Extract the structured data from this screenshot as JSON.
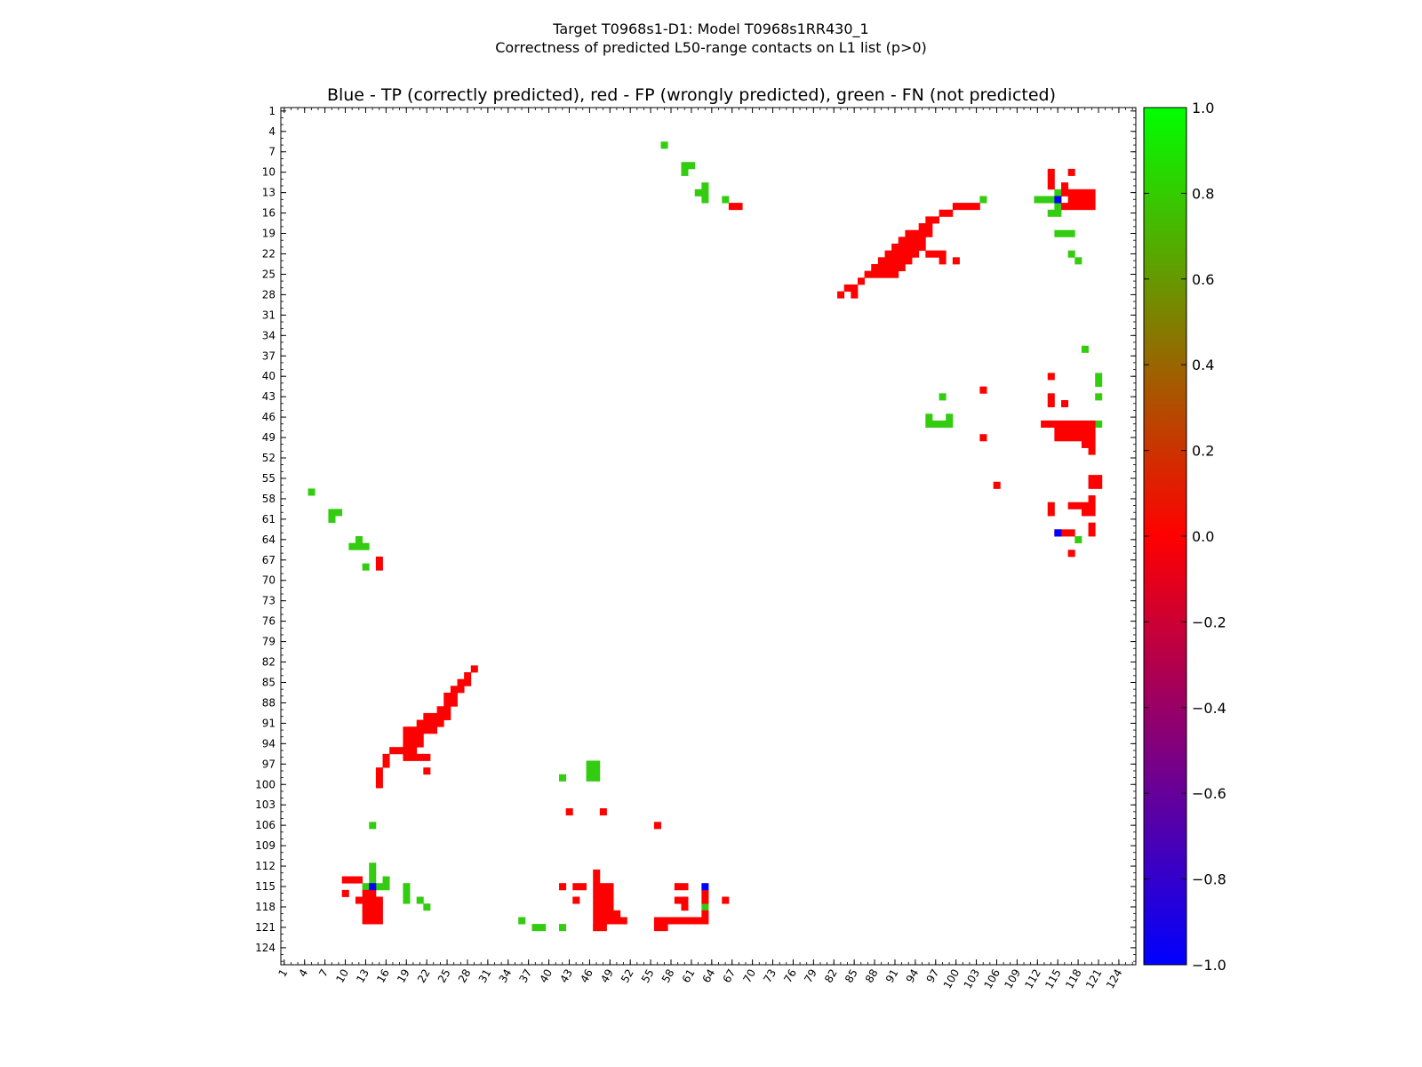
{
  "suptitle_line1": "Target T0968s1-D1: Model T0968s1RR430_1",
  "suptitle_line2": "Correctness of predicted L50-range contacts on L1 list (p>0)",
  "chart_data": {
    "type": "heatmap",
    "title": "Blue - TP (correctly predicted), red - FP (wrongly predicted), green - FN (not predicted)",
    "xlabel": "",
    "ylabel": "",
    "axis_range": [
      1,
      126
    ],
    "tick_labels": [
      "1",
      "4",
      "7",
      "10",
      "13",
      "16",
      "19",
      "22",
      "25",
      "28",
      "31",
      "34",
      "37",
      "40",
      "43",
      "46",
      "49",
      "52",
      "55",
      "58",
      "61",
      "64",
      "67",
      "70",
      "73",
      "76",
      "79",
      "82",
      "85",
      "88",
      "91",
      "94",
      "97",
      "100",
      "103",
      "106",
      "109",
      "112",
      "115",
      "118",
      "121",
      "124"
    ],
    "colorbar": {
      "min": -1.0,
      "max": 1.0,
      "ticks": [
        "−1.0",
        "−0.8",
        "−0.6",
        "−0.4",
        "−0.2",
        "0.0",
        "0.2",
        "0.4",
        "0.6",
        "0.8",
        "1.0"
      ],
      "colors": {
        "low": "#0000ff",
        "mid": "#ff0000",
        "high": "#00ff00"
      }
    },
    "legend": {
      "tp_color": "#0000ff",
      "fp_color": "#ff0000",
      "fn_color": "#33cc11"
    },
    "tp": [
      [
        14,
        115
      ],
      [
        115,
        14
      ],
      [
        63,
        115
      ],
      [
        115,
        63
      ]
    ],
    "fp": [
      [
        10,
        114
      ],
      [
        11,
        114
      ],
      [
        12,
        114
      ],
      [
        10,
        116
      ],
      [
        12,
        117
      ],
      [
        13,
        117
      ],
      [
        13,
        116
      ],
      [
        14,
        116
      ],
      [
        13,
        118
      ],
      [
        14,
        118
      ],
      [
        15,
        118
      ],
      [
        13,
        119
      ],
      [
        14,
        119
      ],
      [
        15,
        119
      ],
      [
        13,
        120
      ],
      [
        14,
        120
      ],
      [
        15,
        120
      ],
      [
        14,
        117
      ],
      [
        15,
        117
      ],
      [
        15,
        68
      ],
      [
        15,
        67
      ],
      [
        15,
        98
      ],
      [
        15,
        99
      ],
      [
        15,
        100
      ],
      [
        16,
        96
      ],
      [
        16,
        97
      ],
      [
        17,
        95
      ],
      [
        18,
        95
      ],
      [
        19,
        92
      ],
      [
        19,
        93
      ],
      [
        19,
        94
      ],
      [
        19,
        95
      ],
      [
        19,
        96
      ],
      [
        20,
        92
      ],
      [
        20,
        93
      ],
      [
        20,
        94
      ],
      [
        20,
        95
      ],
      [
        21,
        91
      ],
      [
        21,
        92
      ],
      [
        21,
        93
      ],
      [
        21,
        94
      ],
      [
        22,
        90
      ],
      [
        22,
        91
      ],
      [
        22,
        92
      ],
      [
        23,
        90
      ],
      [
        23,
        91
      ],
      [
        23,
        92
      ],
      [
        24,
        89
      ],
      [
        24,
        90
      ],
      [
        24,
        91
      ],
      [
        25,
        87
      ],
      [
        25,
        88
      ],
      [
        25,
        89
      ],
      [
        25,
        90
      ],
      [
        26,
        86
      ],
      [
        26,
        87
      ],
      [
        26,
        88
      ],
      [
        27,
        85
      ],
      [
        27,
        86
      ],
      [
        28,
        84
      ],
      [
        28,
        85
      ],
      [
        29,
        83
      ],
      [
        20,
        96
      ],
      [
        21,
        96
      ],
      [
        22,
        96
      ],
      [
        22,
        98
      ],
      [
        42,
        115
      ],
      [
        44,
        115
      ],
      [
        45,
        115
      ],
      [
        44,
        117
      ],
      [
        43,
        104
      ],
      [
        48,
        104
      ],
      [
        56,
        106
      ],
      [
        56,
        120
      ],
      [
        57,
        120
      ],
      [
        56,
        121
      ],
      [
        57,
        121
      ],
      [
        47,
        113
      ],
      [
        47,
        114
      ],
      [
        47,
        115
      ],
      [
        47,
        116
      ],
      [
        47,
        117
      ],
      [
        47,
        118
      ],
      [
        47,
        119
      ],
      [
        47,
        120
      ],
      [
        47,
        121
      ],
      [
        48,
        115
      ],
      [
        48,
        116
      ],
      [
        48,
        117
      ],
      [
        48,
        118
      ],
      [
        48,
        119
      ],
      [
        48,
        120
      ],
      [
        48,
        121
      ],
      [
        49,
        115
      ],
      [
        49,
        116
      ],
      [
        49,
        117
      ],
      [
        49,
        118
      ],
      [
        49,
        119
      ],
      [
        49,
        120
      ],
      [
        50,
        119
      ],
      [
        50,
        120
      ],
      [
        51,
        120
      ],
      [
        59,
        115
      ],
      [
        60,
        115
      ],
      [
        59,
        117
      ],
      [
        60,
        117
      ],
      [
        60,
        118
      ],
      [
        58,
        120
      ],
      [
        59,
        120
      ],
      [
        60,
        120
      ],
      [
        61,
        120
      ],
      [
        62,
        120
      ],
      [
        63,
        120
      ],
      [
        63,
        119
      ],
      [
        63,
        116
      ],
      [
        63,
        117
      ],
      [
        66,
        117
      ],
      [
        114,
        10
      ],
      [
        114,
        11
      ],
      [
        114,
        12
      ],
      [
        117,
        10
      ],
      [
        116,
        12
      ],
      [
        116,
        13
      ],
      [
        117,
        13
      ],
      [
        118,
        13
      ],
      [
        119,
        13
      ],
      [
        120,
        13
      ],
      [
        117,
        14
      ],
      [
        118,
        14
      ],
      [
        119,
        14
      ],
      [
        120,
        14
      ],
      [
        116,
        15
      ],
      [
        117,
        15
      ],
      [
        118,
        15
      ],
      [
        119,
        15
      ],
      [
        120,
        15
      ],
      [
        67,
        15
      ],
      [
        68,
        15
      ],
      [
        98,
        16
      ],
      [
        99,
        16
      ],
      [
        100,
        15
      ],
      [
        101,
        15
      ],
      [
        102,
        15
      ],
      [
        103,
        15
      ],
      [
        83,
        28
      ],
      [
        84,
        27
      ],
      [
        85,
        27
      ],
      [
        86,
        26
      ],
      [
        85,
        28
      ],
      [
        87,
        25
      ],
      [
        88,
        25
      ],
      [
        89,
        25
      ],
      [
        90,
        25
      ],
      [
        91,
        25
      ],
      [
        88,
        24
      ],
      [
        89,
        24
      ],
      [
        90,
        24
      ],
      [
        91,
        24
      ],
      [
        92,
        24
      ],
      [
        89,
        23
      ],
      [
        90,
        23
      ],
      [
        91,
        23
      ],
      [
        92,
        23
      ],
      [
        93,
        23
      ],
      [
        90,
        22
      ],
      [
        91,
        22
      ],
      [
        92,
        22
      ],
      [
        93,
        22
      ],
      [
        94,
        22
      ],
      [
        91,
        21
      ],
      [
        92,
        21
      ],
      [
        93,
        21
      ],
      [
        94,
        21
      ],
      [
        95,
        21
      ],
      [
        92,
        20
      ],
      [
        93,
        20
      ],
      [
        94,
        20
      ],
      [
        95,
        20
      ],
      [
        93,
        19
      ],
      [
        94,
        19
      ],
      [
        95,
        19
      ],
      [
        96,
        19
      ],
      [
        95,
        18
      ],
      [
        96,
        18
      ],
      [
        96,
        17
      ],
      [
        97,
        17
      ],
      [
        96,
        22
      ],
      [
        97,
        22
      ],
      [
        98,
        22
      ],
      [
        98,
        23
      ],
      [
        100,
        23
      ],
      [
        104,
        42
      ],
      [
        104,
        49
      ],
      [
        106,
        56
      ],
      [
        114,
        40
      ],
      [
        114,
        43
      ],
      [
        114,
        44
      ],
      [
        116,
        44
      ],
      [
        113,
        47
      ],
      [
        114,
        47
      ],
      [
        115,
        47
      ],
      [
        116,
        47
      ],
      [
        117,
        47
      ],
      [
        118,
        47
      ],
      [
        119,
        47
      ],
      [
        120,
        47
      ],
      [
        115,
        48
      ],
      [
        116,
        48
      ],
      [
        117,
        48
      ],
      [
        118,
        48
      ],
      [
        119,
        48
      ],
      [
        120,
        48
      ],
      [
        115,
        49
      ],
      [
        116,
        49
      ],
      [
        117,
        49
      ],
      [
        118,
        49
      ],
      [
        119,
        49
      ],
      [
        120,
        49
      ],
      [
        119,
        50
      ],
      [
        120,
        50
      ],
      [
        120,
        51
      ],
      [
        120,
        55
      ],
      [
        121,
        55
      ],
      [
        120,
        56
      ],
      [
        121,
        56
      ],
      [
        114,
        59
      ],
      [
        114,
        60
      ],
      [
        117,
        59
      ],
      [
        118,
        59
      ],
      [
        119,
        59
      ],
      [
        119,
        60
      ],
      [
        120,
        58
      ],
      [
        120,
        59
      ],
      [
        120,
        60
      ],
      [
        115,
        63
      ],
      [
        116,
        63
      ],
      [
        117,
        63
      ],
      [
        120,
        63
      ],
      [
        120,
        62
      ],
      [
        117,
        66
      ]
    ],
    "fn": [
      [
        5,
        57
      ],
      [
        8,
        60
      ],
      [
        9,
        60
      ],
      [
        8,
        61
      ],
      [
        12,
        64
      ],
      [
        11,
        65
      ],
      [
        12,
        65
      ],
      [
        13,
        65
      ],
      [
        13,
        68
      ],
      [
        14,
        112
      ],
      [
        14,
        113
      ],
      [
        14,
        114
      ],
      [
        13,
        115
      ],
      [
        15,
        115
      ],
      [
        16,
        115
      ],
      [
        16,
        114
      ],
      [
        19,
        115
      ],
      [
        19,
        116
      ],
      [
        19,
        117
      ],
      [
        21,
        117
      ],
      [
        22,
        118
      ],
      [
        36,
        120
      ],
      [
        38,
        121
      ],
      [
        39,
        121
      ],
      [
        42,
        121
      ],
      [
        47,
        121
      ],
      [
        46,
        97
      ],
      [
        47,
        97
      ],
      [
        46,
        98
      ],
      [
        47,
        98
      ],
      [
        46,
        99
      ],
      [
        47,
        99
      ],
      [
        42,
        99
      ],
      [
        14,
        106
      ],
      [
        63,
        118
      ],
      [
        57,
        6
      ],
      [
        60,
        9
      ],
      [
        61,
        9
      ],
      [
        60,
        10
      ],
      [
        63,
        12
      ],
      [
        63,
        13
      ],
      [
        62,
        13
      ],
      [
        63,
        14
      ],
      [
        66,
        14
      ],
      [
        104,
        14
      ],
      [
        112,
        14
      ],
      [
        113,
        14
      ],
      [
        114,
        14
      ],
      [
        115,
        13
      ],
      [
        114,
        16
      ],
      [
        115,
        16
      ],
      [
        115,
        15
      ],
      [
        115,
        19
      ],
      [
        116,
        19
      ],
      [
        117,
        19
      ],
      [
        117,
        22
      ],
      [
        118,
        23
      ],
      [
        119,
        36
      ],
      [
        121,
        40
      ],
      [
        121,
        41
      ],
      [
        121,
        43
      ],
      [
        98,
        43
      ],
      [
        96,
        46
      ],
      [
        96,
        47
      ],
      [
        97,
        47
      ],
      [
        98,
        47
      ],
      [
        99,
        47
      ],
      [
        99,
        46
      ],
      [
        121,
        47
      ],
      [
        118,
        64
      ]
    ]
  }
}
